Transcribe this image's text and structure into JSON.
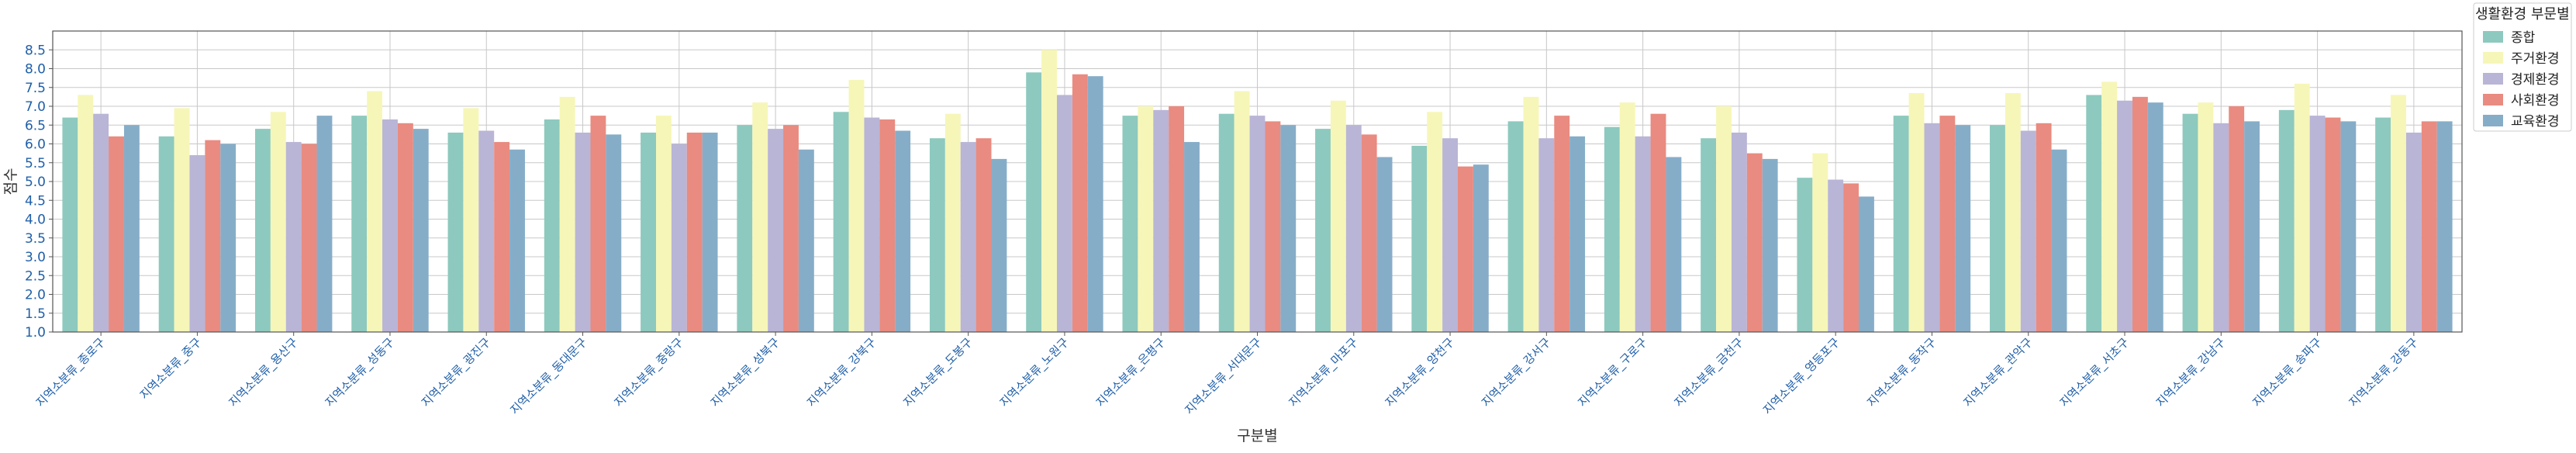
{
  "chart_data": {
    "type": "bar",
    "xlabel": "구분별",
    "ylabel": "점수",
    "ylim": [
      1.0,
      9.0
    ],
    "yticks": [
      1.0,
      1.5,
      2.0,
      2.5,
      3.0,
      3.5,
      4.0,
      4.5,
      5.0,
      5.5,
      6.0,
      6.5,
      7.0,
      7.5,
      8.0,
      8.5
    ],
    "grid": true,
    "legend": {
      "title": "생활환경 부문별",
      "placement": "outside-top-right"
    },
    "categories": [
      "지역소분류_종로구",
      "지역소분류_중구",
      "지역소분류_용산구",
      "지역소분류_성동구",
      "지역소분류_광진구",
      "지역소분류_동대문구",
      "지역소분류_중랑구",
      "지역소분류_성북구",
      "지역소분류_강북구",
      "지역소분류_도봉구",
      "지역소분류_노원구",
      "지역소분류_은평구",
      "지역소분류_서대문구",
      "지역소분류_마포구",
      "지역소분류_양천구",
      "지역소분류_강서구",
      "지역소분류_구로구",
      "지역소분류_금천구",
      "지역소분류_영등포구",
      "지역소분류_동작구",
      "지역소분류_관악구",
      "지역소분류_서초구",
      "지역소분류_강남구",
      "지역소분류_송파구",
      "지역소분류_강동구"
    ],
    "series": [
      {
        "name": "종합",
        "color": "#8dc9be",
        "values": [
          6.7,
          6.2,
          6.4,
          6.75,
          6.3,
          6.65,
          6.3,
          6.5,
          6.85,
          6.15,
          7.9,
          6.75,
          6.8,
          6.4,
          5.95,
          6.6,
          6.45,
          6.15,
          5.1,
          6.75,
          6.5,
          7.3,
          6.8,
          6.9,
          6.7
        ]
      },
      {
        "name": "주거환경",
        "color": "#f6f6b8",
        "values": [
          7.3,
          6.95,
          6.85,
          7.4,
          6.95,
          7.25,
          6.75,
          7.1,
          7.7,
          6.8,
          8.5,
          7.0,
          7.4,
          7.15,
          6.85,
          7.25,
          7.1,
          7.0,
          5.75,
          7.35,
          7.35,
          7.65,
          7.1,
          7.6,
          7.3
        ]
      },
      {
        "name": "경제환경",
        "color": "#b9b5d6",
        "values": [
          6.8,
          5.7,
          6.05,
          6.65,
          6.35,
          6.3,
          6.0,
          6.4,
          6.7,
          6.05,
          7.3,
          6.9,
          6.75,
          6.5,
          6.15,
          6.15,
          6.2,
          6.3,
          5.05,
          6.55,
          6.35,
          7.15,
          6.55,
          6.75,
          6.3
        ]
      },
      {
        "name": "사회환경",
        "color": "#e98b80",
        "values": [
          6.2,
          6.1,
          6.0,
          6.55,
          6.05,
          6.75,
          6.3,
          6.5,
          6.65,
          6.15,
          7.85,
          7.0,
          6.6,
          6.25,
          5.4,
          6.75,
          6.8,
          5.75,
          4.95,
          6.75,
          6.55,
          7.25,
          7.0,
          6.7,
          6.6
        ]
      },
      {
        "name": "교육환경",
        "color": "#86adc8",
        "values": [
          6.5,
          6.0,
          6.75,
          6.4,
          5.85,
          6.25,
          6.3,
          5.85,
          6.35,
          5.6,
          7.8,
          6.05,
          6.5,
          5.65,
          5.45,
          6.2,
          5.65,
          5.6,
          4.6,
          6.5,
          5.85,
          7.1,
          6.6,
          6.6,
          6.6
        ]
      }
    ]
  }
}
